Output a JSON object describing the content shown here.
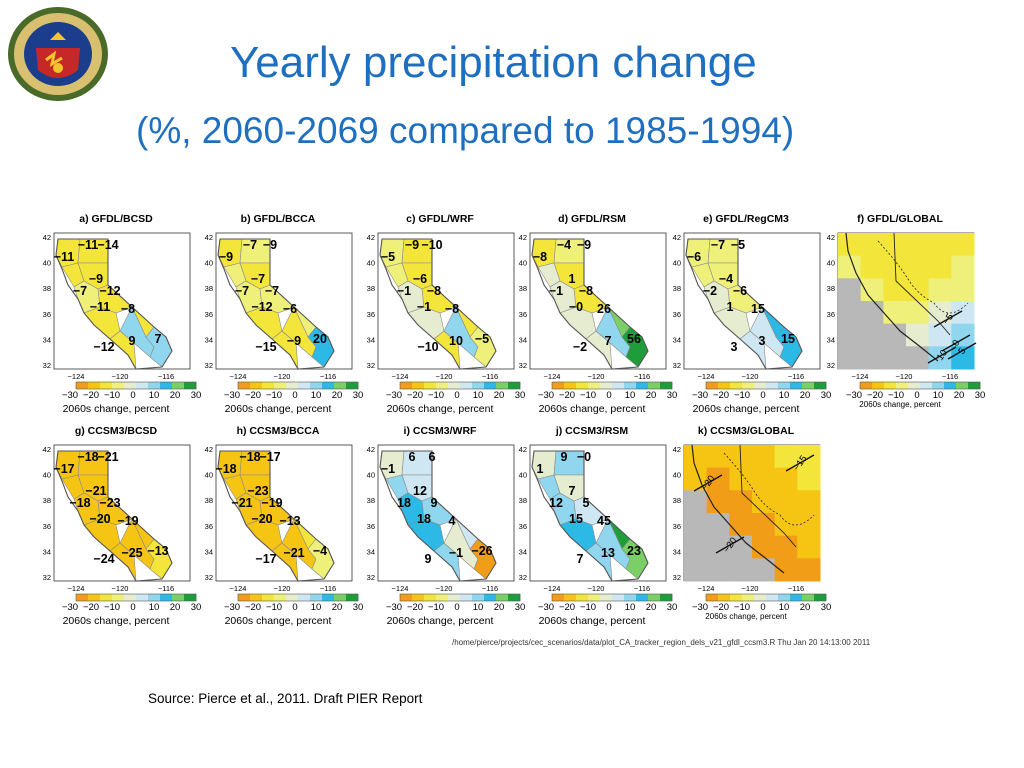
{
  "slide": {
    "title": "Yearly precipitation change",
    "subtitle": "(%, 2060-2069 compared to 1985-1994)",
    "source": "Source: Pierce et al., 2011. Draft PIER Report",
    "footer_path": "/home/pierce/projects/cec_scenarios/data/plot_CA_tracker_region_dels_v21_gfdl_ccsm3.R Thu Jan 20 14:13:00 2011"
  },
  "seal": {
    "icon": "california-energy-commission-seal-icon",
    "lettering": "STATE OF CALIFORNIA · ENERGY COMMISSION"
  },
  "axes": {
    "lat_ticks": [
      "42",
      "40",
      "38",
      "36",
      "34",
      "32"
    ],
    "lon_ticks": [
      "−124",
      "−120",
      "−116"
    ],
    "colorbar_ticks": [
      "−30",
      "−20",
      "−10",
      "0",
      "10",
      "20",
      "30"
    ],
    "colorbar_label": "2060s change, percent"
  },
  "colors": {
    "title": "#1f6fc0",
    "scale": [
      "#f29d18",
      "#f6c514",
      "#f4e53a",
      "#eef07a",
      "#e6ecd0",
      "#cfe7f2",
      "#8fd6ee",
      "#2cb9e6",
      "#7ccf67",
      "#1f9d3b"
    ]
  },
  "panels": [
    {
      "title": "a) GFDL/BCSD",
      "kind": "regional",
      "values": [
        -11,
        -11,
        -14,
        -9,
        -7,
        -12,
        -11,
        -8,
        -12,
        9,
        7
      ]
    },
    {
      "title": "b) GFDL/BCCA",
      "kind": "regional",
      "values": [
        -9,
        -7,
        -9,
        -7,
        -7,
        -7,
        -12,
        -6,
        -15,
        -9,
        20
      ]
    },
    {
      "title": "c) GFDL/WRF",
      "kind": "regional",
      "values": [
        -5,
        -9,
        -10,
        -6,
        -1,
        -8,
        -1,
        -8,
        -10,
        10,
        -5
      ]
    },
    {
      "title": "d) GFDL/RSM",
      "kind": "regional",
      "values": [
        -8,
        -4,
        -9,
        1,
        -1,
        -8,
        0,
        26,
        -2,
        7,
        56
      ]
    },
    {
      "title": "e) GFDL/RegCM3",
      "kind": "regional",
      "values": [
        -6,
        -7,
        -5,
        -4,
        -2,
        -6,
        1,
        15,
        3,
        3,
        15
      ]
    },
    {
      "title": "f) GFDL/GLOBAL",
      "kind": "global",
      "contours": [
        "-5",
        "0",
        "5",
        "10"
      ]
    },
    {
      "title": "g) CCSM3/BCSD",
      "kind": "regional",
      "values": [
        -17,
        -18,
        -21,
        -21,
        -18,
        -23,
        -20,
        -19,
        -24,
        -25,
        -13
      ]
    },
    {
      "title": "h) CCSM3/BCCA",
      "kind": "regional",
      "values": [
        -18,
        -18,
        -17,
        -23,
        -21,
        -19,
        -20,
        -13,
        -17,
        -21,
        -4
      ]
    },
    {
      "title": "i) CCSM3/WRF",
      "kind": "regional",
      "values": [
        -1,
        6,
        6,
        12,
        18,
        9,
        18,
        4,
        9,
        -1,
        -26
      ]
    },
    {
      "title": "j) CCSM3/RSM",
      "kind": "regional",
      "values": [
        1,
        9,
        0,
        7,
        12,
        5,
        15,
        45,
        7,
        13,
        23
      ]
    },
    {
      "title": "k) CCSM3/GLOBAL",
      "kind": "global",
      "contours": [
        "-15",
        "-20",
        "-20"
      ]
    }
  ]
}
